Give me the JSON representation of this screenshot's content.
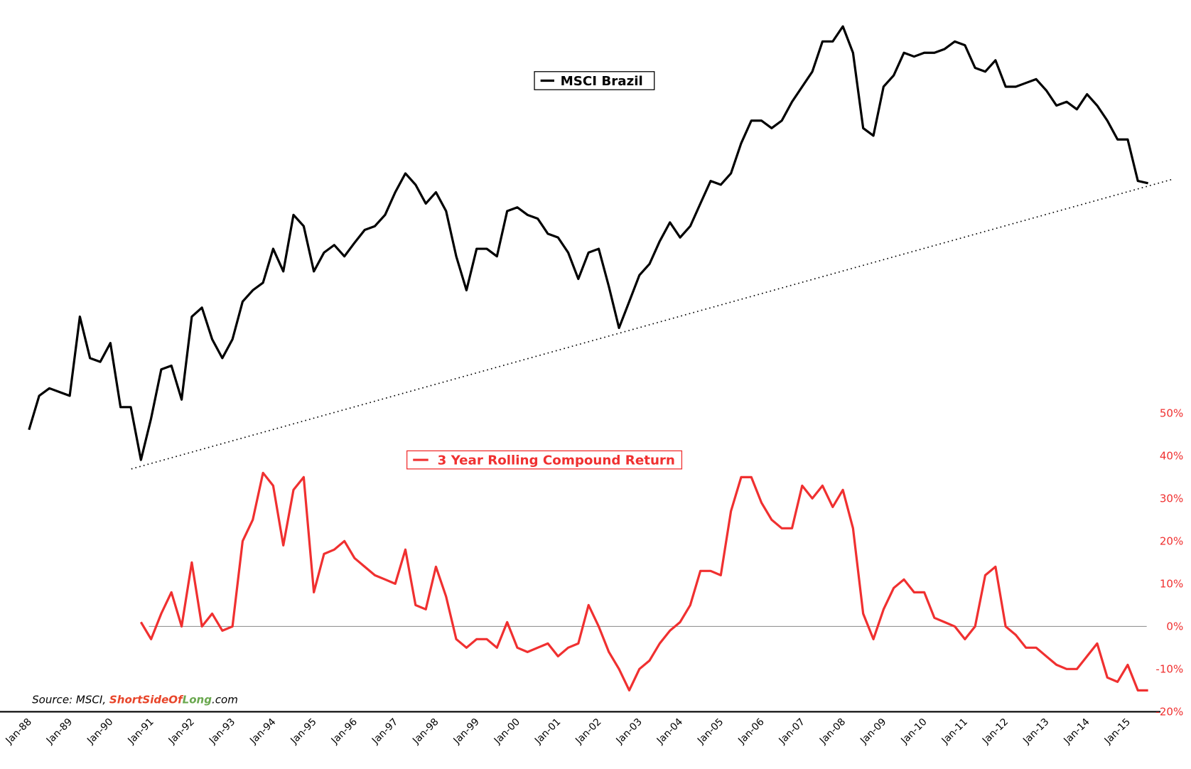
{
  "chart_data": {
    "type": "line",
    "source_parts": [
      "Source: MSCI, ",
      "ShortSideOf",
      "Long",
      ".com"
    ],
    "x": [
      "1988-01",
      "1988-04",
      "1988-07",
      "1988-10",
      "1989-01",
      "1989-04",
      "1989-07",
      "1989-10",
      "1990-01",
      "1990-04",
      "1990-07",
      "1990-10",
      "1991-01",
      "1991-04",
      "1991-07",
      "1991-10",
      "1992-01",
      "1992-04",
      "1992-07",
      "1992-10",
      "1993-01",
      "1993-04",
      "1993-07",
      "1993-10",
      "1994-01",
      "1994-04",
      "1994-07",
      "1994-10",
      "1995-01",
      "1995-04",
      "1995-07",
      "1995-10",
      "1996-01",
      "1996-04",
      "1996-07",
      "1996-10",
      "1997-01",
      "1997-04",
      "1997-07",
      "1997-10",
      "1998-01",
      "1998-04",
      "1998-07",
      "1998-10",
      "1999-01",
      "1999-04",
      "1999-07",
      "1999-10",
      "2000-01",
      "2000-04",
      "2000-07",
      "2000-10",
      "2001-01",
      "2001-04",
      "2001-07",
      "2001-10",
      "2002-01",
      "2002-04",
      "2002-07",
      "2002-10",
      "2003-01",
      "2003-04",
      "2003-07",
      "2003-10",
      "2004-01",
      "2004-04",
      "2004-07",
      "2004-10",
      "2005-01",
      "2005-04",
      "2005-07",
      "2005-10",
      "2006-01",
      "2006-04",
      "2006-07",
      "2006-10",
      "2007-01",
      "2007-04",
      "2007-07",
      "2007-10",
      "2008-01",
      "2008-04",
      "2008-07",
      "2008-10",
      "2009-01",
      "2009-04",
      "2009-07",
      "2009-10",
      "2010-01",
      "2010-04",
      "2010-07",
      "2010-10",
      "2011-01",
      "2011-04",
      "2011-07",
      "2011-10",
      "2012-01",
      "2012-04",
      "2012-07",
      "2012-10",
      "2013-01",
      "2013-04",
      "2013-07",
      "2013-10",
      "2014-01",
      "2014-04",
      "2014-07",
      "2014-10",
      "2015-01",
      "2015-04",
      "2015-07"
    ],
    "series": [
      {
        "name": "MSCI Brazil",
        "color": "#000000",
        "axis": "y2",
        "values": [
          37.4,
          41.9,
          42.9,
          42.4,
          41.9,
          52.4,
          46.9,
          46.4,
          48.9,
          40.4,
          40.4,
          33.4,
          38.9,
          45.4,
          45.9,
          41.4,
          52.4,
          53.6,
          49.4,
          46.9,
          49.4,
          54.4,
          55.9,
          56.9,
          61.4,
          58.4,
          65.9,
          64.4,
          58.4,
          60.9,
          61.9,
          60.4,
          62.2,
          63.9,
          64.4,
          65.9,
          68.9,
          71.4,
          69.9,
          67.4,
          68.9,
          66.4,
          60.4,
          55.9,
          61.4,
          61.4,
          60.4,
          66.4,
          66.9,
          65.9,
          65.4,
          63.4,
          62.9,
          60.9,
          57.4,
          60.9,
          61.4,
          56.4,
          50.9,
          54.4,
          57.9,
          59.4,
          62.4,
          64.9,
          62.9,
          64.4,
          67.4,
          70.4,
          69.9,
          71.4,
          75.4,
          78.4,
          78.4,
          77.4,
          78.4,
          80.9,
          82.9,
          84.9,
          88.9,
          88.9,
          90.9,
          87.4,
          77.4,
          76.4,
          82.9,
          84.4,
          87.4,
          86.9,
          87.4,
          87.4,
          87.9,
          88.9,
          88.4,
          85.4,
          84.9,
          86.4,
          82.9,
          82.9,
          83.4,
          83.9,
          82.4,
          80.4,
          80.9,
          79.9,
          81.9,
          80.4,
          78.4,
          75.9,
          75.9,
          70.4,
          70.1
        ]
      },
      {
        "name": "3 Year Rolling Compound Return",
        "color": "#f03030",
        "values": [
          null,
          null,
          null,
          null,
          null,
          null,
          null,
          null,
          null,
          null,
          null,
          1,
          -3,
          3,
          8,
          0,
          15,
          0,
          3,
          -1,
          0,
          20,
          25,
          36,
          33,
          19,
          32,
          35,
          8,
          17,
          18,
          20,
          16,
          14,
          12,
          11,
          10,
          18,
          5,
          4,
          14,
          7,
          -3,
          -5,
          -3,
          -3,
          -5,
          1,
          -5,
          -6,
          -5,
          -4,
          -7,
          -5,
          -4,
          5,
          0,
          -6,
          -10,
          -15,
          -10,
          -8,
          -4,
          -1,
          1,
          5,
          13,
          13,
          12,
          27,
          35,
          35,
          29,
          25,
          23,
          23,
          33,
          30,
          33,
          28,
          32,
          23,
          3,
          -3,
          4,
          9,
          11,
          8,
          8,
          2,
          1,
          0,
          -3,
          0,
          12,
          14,
          0,
          -2,
          -5,
          -5,
          -7,
          -9,
          -10,
          -10,
          -7,
          -4,
          -12,
          -13,
          -9,
          -15,
          -15
        ]
      }
    ],
    "ylim": [
      -20,
      50
    ],
    "yticks": [
      {
        "value": -20,
        "label": "-20%"
      },
      {
        "value": -10,
        "label": "-10%"
      },
      {
        "value": 0,
        "label": "0%"
      },
      {
        "value": 10,
        "label": "10%"
      },
      {
        "value": 20,
        "label": "20%"
      },
      {
        "value": 30,
        "label": "30%"
      },
      {
        "value": 40,
        "label": "40%"
      },
      {
        "value": 50,
        "label": "50%"
      }
    ],
    "y2lim": [
      0,
      94.4
    ],
    "xticks": [
      {
        "value": "1988-01",
        "label": "Jan-88"
      },
      {
        "value": "1989-01",
        "label": "Jan-89"
      },
      {
        "value": "1990-01",
        "label": "Jan-90"
      },
      {
        "value": "1991-01",
        "label": "Jan-91"
      },
      {
        "value": "1992-01",
        "label": "Jan-92"
      },
      {
        "value": "1993-01",
        "label": "Jan-93"
      },
      {
        "value": "1994-01",
        "label": "Jan-94"
      },
      {
        "value": "1995-01",
        "label": "Jan-95"
      },
      {
        "value": "1996-01",
        "label": "Jan-96"
      },
      {
        "value": "1997-01",
        "label": "Jan-97"
      },
      {
        "value": "1998-01",
        "label": "Jan-98"
      },
      {
        "value": "1999-01",
        "label": "Jan-99"
      },
      {
        "value": "2000-01",
        "label": "Jan-00"
      },
      {
        "value": "2001-01",
        "label": "Jan-01"
      },
      {
        "value": "2002-01",
        "label": "Jan-02"
      },
      {
        "value": "2003-01",
        "label": "Jan-03"
      },
      {
        "value": "2004-01",
        "label": "Jan-04"
      },
      {
        "value": "2005-01",
        "label": "Jan-05"
      },
      {
        "value": "2006-01",
        "label": "Jan-06"
      },
      {
        "value": "2007-01",
        "label": "Jan-07"
      },
      {
        "value": "2008-01",
        "label": "Jan-08"
      },
      {
        "value": "2009-01",
        "label": "Jan-09"
      },
      {
        "value": "2010-01",
        "label": "Jan-10"
      },
      {
        "value": "2011-01",
        "label": "Jan-11"
      },
      {
        "value": "2012-01",
        "label": "Jan-12"
      },
      {
        "value": "2013-01",
        "label": "Jan-13"
      },
      {
        "value": "2014-01",
        "label": "Jan-14"
      },
      {
        "value": "2015-01",
        "label": "Jan-15"
      }
    ],
    "ytick_color": "#f03030"
  }
}
